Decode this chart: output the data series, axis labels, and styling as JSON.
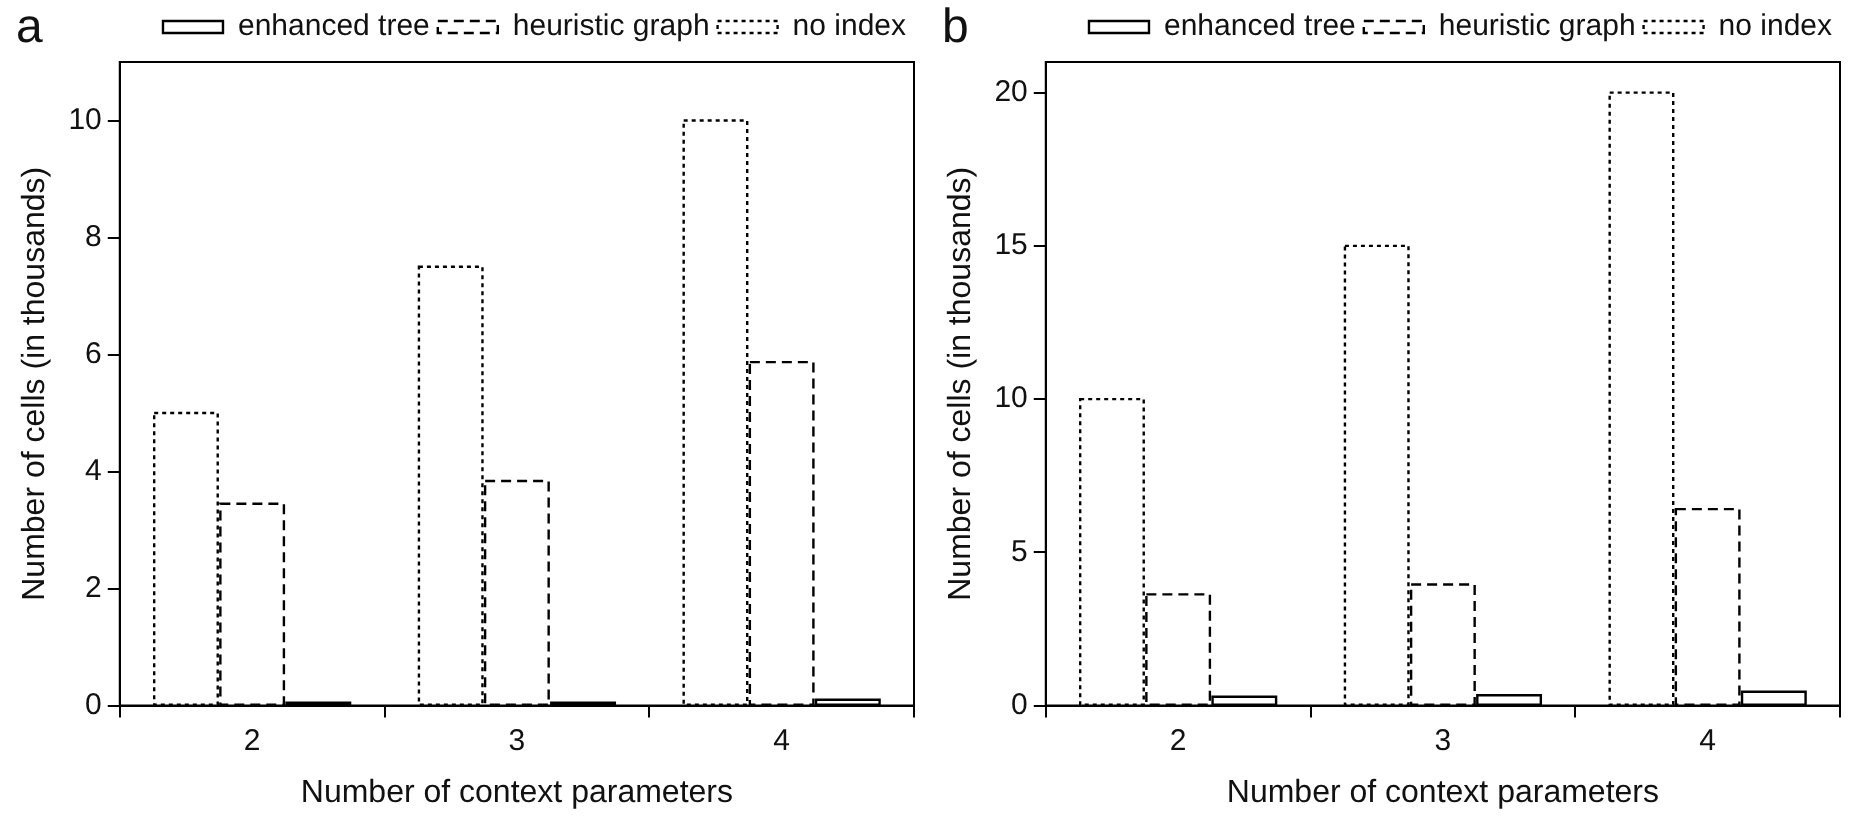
{
  "chart_data": [
    {
      "type": "bar",
      "title": "a",
      "xlabel": "Number of context parameters",
      "ylabel": "Number of cells (in thousands)",
      "categories": [
        "2",
        "3",
        "4"
      ],
      "series": [
        {
          "name": "no index",
          "color": "#000000",
          "line_style": "dotted",
          "values": [
            5,
            7.5,
            10
          ]
        },
        {
          "name": "heuristic graph",
          "color": "#000000",
          "line_style": "dashed",
          "values": [
            3.45,
            3.84,
            5.87
          ]
        },
        {
          "name": "enhanced tree",
          "color": "#000000",
          "line_style": "solid",
          "values": [
            0.05,
            0.05,
            0.1
          ]
        }
      ],
      "ylim": [
        0,
        11
      ],
      "yticks": [
        0,
        2,
        4,
        6,
        8,
        10
      ],
      "grid": false,
      "legend": "top right"
    },
    {
      "type": "bar",
      "title": "b",
      "xlabel": "Number of context parameters",
      "ylabel": "Number of cells (in thousands)",
      "categories": [
        "2",
        "3",
        "4"
      ],
      "series": [
        {
          "name": "no index",
          "color": "#000000",
          "line_style": "dotted",
          "values": [
            10,
            15,
            20
          ]
        },
        {
          "name": "heuristic graph",
          "color": "#000000",
          "line_style": "dashed",
          "values": [
            3.63,
            3.95,
            6.41
          ]
        },
        {
          "name": "enhanced tree",
          "color": "#000000",
          "line_style": "solid",
          "values": [
            0.29,
            0.34,
            0.45
          ]
        }
      ],
      "ylim": [
        0,
        21
      ],
      "yticks": [
        0,
        5,
        10,
        15,
        20
      ],
      "grid": false,
      "legend": "top right"
    }
  ]
}
